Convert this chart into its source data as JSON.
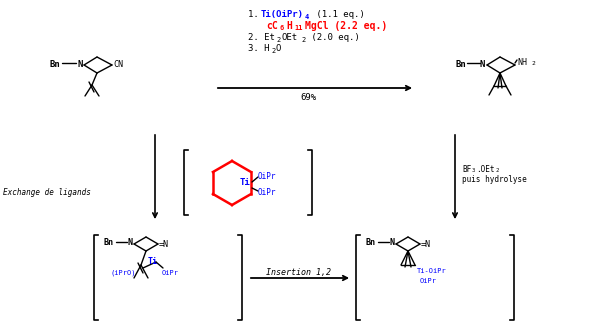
{
  "bg_color": "#000000",
  "figsize": [
    6.0,
    3.33
  ],
  "dpi": 100,
  "line1_blue": "Ti(OiPr)",
  "line1_sub": "4",
  "line1_end": " (1.1 eq.)",
  "line2_red": "cC",
  "line2_red_sub1": "6",
  "line2_red2": "H",
  "line2_red_sub2": "11",
  "line2_end": "MgCl (2.2 eq.)",
  "line3": "2. Et",
  "line3_sub1": "2",
  "line3b": "OEt",
  "line3_sub2": "2",
  "line3_end": " (2.0 eq.)",
  "line4": "3. H",
  "line4_sub": "2",
  "line4_end": "O",
  "yield_text": "69%",
  "exchange_label": "Exchange de ligands",
  "bf3_label1": "BF",
  "bf3_sub": "3",
  "bf3_label2": ".OEt",
  "bf3_sub2": "2",
  "puis_label": "puis hydrolyse",
  "insertion_label": "Insertion 1,2",
  "Bn_label": "Bn",
  "N_label": "N",
  "CN_label": "CN",
  "NH2_label": "NH",
  "NH2_sub": "2",
  "Ti_label": "Ti",
  "OiPr_label": "OiPr",
  "iPrO_label": "iPrO",
  "Ti_OiPr": "Ti-OiPr",
  "OiPr2": "OiPr"
}
